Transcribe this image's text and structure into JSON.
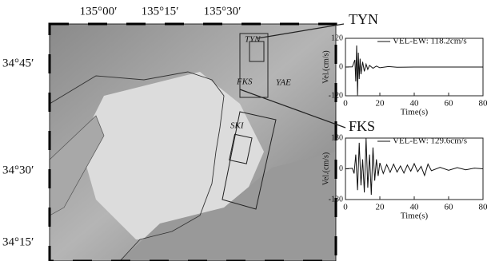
{
  "map": {
    "lon_labels": [
      "135°00′",
      "135°15′",
      "135°30′"
    ],
    "lat_labels": [
      "34°45′",
      "34°30′",
      "34°15′"
    ],
    "stations": [
      "TYN",
      "YAE",
      "FKS",
      "SKI"
    ]
  },
  "chart_data": [
    {
      "type": "line",
      "title": "TYN",
      "xlabel": "Time(s)",
      "ylabel": "Vel.(cm/s)",
      "x": [
        0,
        4,
        5.5,
        6,
        6.5,
        7,
        7.5,
        8,
        8.5,
        9,
        10,
        11,
        12,
        13,
        14,
        16,
        18,
        20,
        25,
        30,
        40,
        80
      ],
      "series": [
        {
          "name": "VEL-EW: 118.2cm/s",
          "color": "#111111",
          "values": [
            0,
            1,
            30,
            -60,
            90,
            -118,
            60,
            -50,
            35,
            -30,
            22,
            -18,
            12,
            -10,
            7,
            -5,
            4,
            -3,
            2,
            -1,
            0,
            0
          ]
        }
      ],
      "xlim": [
        0,
        80
      ],
      "xticks": [
        0,
        20,
        40,
        60,
        80
      ],
      "ylim": [
        -120,
        120
      ],
      "yticks": [
        -120,
        0,
        120
      ]
    },
    {
      "type": "line",
      "title": "FKS",
      "xlabel": "Time(s)",
      "ylabel": "Vel.(cm/s)",
      "x": [
        0,
        4,
        5,
        6,
        7,
        8,
        9,
        10,
        11,
        12,
        13,
        14,
        15,
        16,
        17,
        18,
        19,
        20,
        22,
        24,
        26,
        28,
        30,
        32,
        34,
        36,
        38,
        40,
        42,
        44,
        46,
        48,
        50,
        55,
        60,
        65,
        70,
        75,
        80
      ],
      "series": [
        {
          "name": "VEL-EW: 129.6cm/s",
          "color": "#111111",
          "values": [
            0,
            2,
            -20,
            60,
            -90,
            110,
            -70,
            40,
            -100,
            129.6,
            -80,
            60,
            -110,
            90,
            -50,
            40,
            -30,
            25,
            -20,
            18,
            -15,
            20,
            -14,
            12,
            -18,
            16,
            -10,
            22,
            -12,
            10,
            -28,
            20,
            -8,
            6,
            -6,
            5,
            -4,
            3,
            0
          ]
        }
      ],
      "xlim": [
        0,
        80
      ],
      "xticks": [
        0,
        20,
        40,
        60,
        80
      ],
      "ylim": [
        -130,
        130
      ],
      "yticks": [
        -130,
        0,
        130
      ]
    }
  ]
}
